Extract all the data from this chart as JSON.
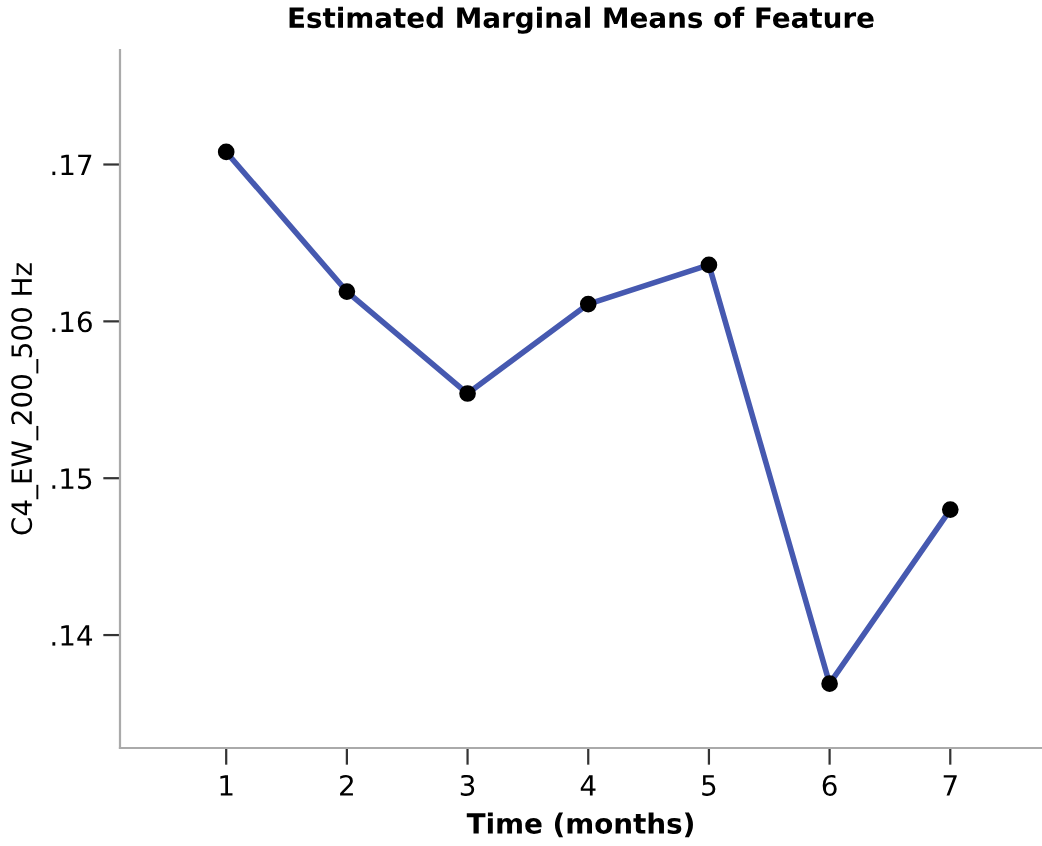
{
  "chart_data": {
    "type": "line",
    "title": "Estimated Marginal Means of Feature",
    "xlabel": "Time (months)",
    "ylabel": "C4_EW_200_500 Hz",
    "x": [
      1,
      2,
      3,
      4,
      5,
      6,
      7
    ],
    "series": [
      {
        "color": "#4659b0",
        "values": [
          0.1708,
          0.1619,
          0.1554,
          0.1611,
          0.1636,
          0.1369,
          0.148
        ]
      }
    ],
    "xlim": [
      0.12,
      7.76
    ],
    "xticks": [
      1,
      2,
      3,
      4,
      5,
      6,
      7
    ],
    "ylim": [
      0.1328,
      0.1773
    ],
    "yticks": [
      {
        "value": 0.14,
        "label": ".14"
      },
      {
        "value": 0.15,
        "label": ".15"
      },
      {
        "value": 0.16,
        "label": ".16"
      },
      {
        "value": 0.17,
        "label": ".17"
      }
    ],
    "grid": false,
    "legend": false,
    "marker": "circle",
    "line_style": "solid"
  }
}
